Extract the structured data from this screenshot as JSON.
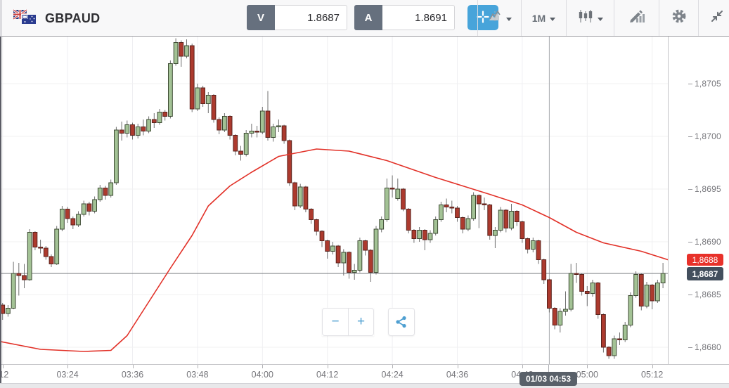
{
  "header": {
    "symbol": "GBPAUD",
    "sell": {
      "label": "V",
      "value": "1.8687"
    },
    "buy": {
      "label": "A",
      "value": "1.8691"
    },
    "timeframe": {
      "value": "1M"
    },
    "accent_color": "#47a4da"
  },
  "toolbar_icons": [
    "compare-charts",
    "timeframe-select",
    "chart-type-candlestick",
    "indicators-draw",
    "settings-gear",
    "collapse"
  ],
  "zoom_controls": {
    "zoom_out": "−",
    "zoom_in": "+"
  },
  "crosshair": {
    "index": 102,
    "tooltip": "01/03 04:53"
  },
  "price_axis": {
    "ma_badge": {
      "label": "1,8688",
      "color": "#e8312a"
    },
    "price_badge": {
      "label": "1,8687",
      "color": "#434f5d"
    }
  },
  "time_axis": {
    "ticks": [
      {
        "index": 1,
        "label": ":12"
      },
      {
        "index": 13,
        "label": "03:24"
      },
      {
        "index": 25,
        "label": "03:36"
      },
      {
        "index": 37,
        "label": "03:48"
      },
      {
        "index": 49,
        "label": "04:00"
      },
      {
        "index": 61,
        "label": "04:12"
      },
      {
        "index": 73,
        "label": "04:24"
      },
      {
        "index": 85,
        "label": "04:36"
      },
      {
        "index": 97,
        "label": "04:48"
      },
      {
        "index": 109,
        "label": "05:00"
      },
      {
        "index": 121,
        "label": "05:12"
      }
    ]
  },
  "chart_data": {
    "type": "candlestick",
    "symbol": "GBPAUD",
    "interval": "1M",
    "start_time": "03:11",
    "end_time": "05:14",
    "encoding": "price = 1.86 + pips/10000",
    "y_axis_range": [
      1.86784,
      1.87095
    ],
    "grid": true,
    "current_price": 1.8687,
    "current_price_pips": 87.0,
    "ma_last_price": 1.8688,
    "up_color": "#a3c295",
    "up_border": "#3c4a32",
    "down_color": "#ac3a2e",
    "down_border": "#5a231d",
    "wick_color": "#707070",
    "ma_color": "#e23128",
    "y_ticks": [
      {
        "pips": 105,
        "label": "1,8705"
      },
      {
        "pips": 100,
        "label": "1,8700"
      },
      {
        "pips": 95,
        "label": "1,8695"
      },
      {
        "pips": 90,
        "label": "1,8690"
      },
      {
        "pips": 85,
        "label": "1,8685"
      },
      {
        "pips": 80,
        "label": "1,8680"
      }
    ],
    "ohlc": [
      [
        84.8,
        85.3,
        83.8,
        84.0
      ],
      [
        84.0,
        84.2,
        82.6,
        83.2
      ],
      [
        83.2,
        84.0,
        82.9,
        83.7
      ],
      [
        83.7,
        88.1,
        83.6,
        87.0
      ],
      [
        87.0,
        88.0,
        84.9,
        86.8
      ],
      [
        86.8,
        87.9,
        85.6,
        86.4
      ],
      [
        86.4,
        91.2,
        86.3,
        90.9
      ],
      [
        90.9,
        91.0,
        89.2,
        89.5
      ],
      [
        89.5,
        90.2,
        88.9,
        89.4
      ],
      [
        89.4,
        89.6,
        88.3,
        88.6
      ],
      [
        88.6,
        88.8,
        87.6,
        87.9
      ],
      [
        87.9,
        91.5,
        87.8,
        91.2
      ],
      [
        91.2,
        93.4,
        91.0,
        93.1
      ],
      [
        93.1,
        93.3,
        91.8,
        92.2
      ],
      [
        92.2,
        92.4,
        91.2,
        91.6
      ],
      [
        91.6,
        92.9,
        91.4,
        92.6
      ],
      [
        92.6,
        93.9,
        92.4,
        93.6
      ],
      [
        93.6,
        93.8,
        92.5,
        92.9
      ],
      [
        92.9,
        94.3,
        92.7,
        94.0
      ],
      [
        94.0,
        95.4,
        93.8,
        95.1
      ],
      [
        95.1,
        95.3,
        94.0,
        94.4
      ],
      [
        94.4,
        95.9,
        94.2,
        95.6
      ],
      [
        95.6,
        100.9,
        95.4,
        100.6
      ],
      [
        100.6,
        101.4,
        99.6,
        100.3
      ],
      [
        100.3,
        101.5,
        99.9,
        101.1
      ],
      [
        101.1,
        101.3,
        99.7,
        100.1
      ],
      [
        100.1,
        101.2,
        99.8,
        100.9
      ],
      [
        100.9,
        101.6,
        100.1,
        100.5
      ],
      [
        100.5,
        101.9,
        100.3,
        101.6
      ],
      [
        101.6,
        102.2,
        100.8,
        101.3
      ],
      [
        101.3,
        102.6,
        101.1,
        102.3
      ],
      [
        102.3,
        102.5,
        101.5,
        101.9
      ],
      [
        101.9,
        107.2,
        101.7,
        106.9
      ],
      [
        106.9,
        109.3,
        106.7,
        108.9
      ],
      [
        108.9,
        109.1,
        106.6,
        107.6
      ],
      [
        107.6,
        109.2,
        107.4,
        108.6
      ],
      [
        108.6,
        108.8,
        102.3,
        102.6
      ],
      [
        102.6,
        105.0,
        102.4,
        104.6
      ],
      [
        104.6,
        104.8,
        102.8,
        103.1
      ],
      [
        103.1,
        104.2,
        102.2,
        103.9
      ],
      [
        103.9,
        104.0,
        101.3,
        101.6
      ],
      [
        101.6,
        101.8,
        100.2,
        100.6
      ],
      [
        100.6,
        102.2,
        100.4,
        101.9
      ],
      [
        101.9,
        102.0,
        99.7,
        100.1
      ],
      [
        100.1,
        100.2,
        98.2,
        98.6
      ],
      [
        98.6,
        99.1,
        97.7,
        98.3
      ],
      [
        98.3,
        100.6,
        98.1,
        100.3
      ],
      [
        100.3,
        101.2,
        99.9,
        100.5
      ],
      [
        100.5,
        101.0,
        99.9,
        100.4
      ],
      [
        100.4,
        102.8,
        100.2,
        102.4
      ],
      [
        102.4,
        104.3,
        99.6,
        99.9
      ],
      [
        99.9,
        101.2,
        99.5,
        100.9
      ],
      [
        100.9,
        101.6,
        100.4,
        101.0
      ],
      [
        101.0,
        101.1,
        99.3,
        99.6
      ],
      [
        99.6,
        99.7,
        95.3,
        95.6
      ],
      [
        95.6,
        95.7,
        93.0,
        93.4
      ],
      [
        93.4,
        95.5,
        93.2,
        95.2
      ],
      [
        95.2,
        95.3,
        92.8,
        93.1
      ],
      [
        93.1,
        93.2,
        91.7,
        92.1
      ],
      [
        92.1,
        92.2,
        90.6,
        91.0
      ],
      [
        91.0,
        91.1,
        89.5,
        90.1
      ],
      [
        90.1,
        90.2,
        88.4,
        89.1
      ],
      [
        89.1,
        90.0,
        88.8,
        89.6
      ],
      [
        89.6,
        89.7,
        87.6,
        88.0
      ],
      [
        88.0,
        89.3,
        86.8,
        89.0
      ],
      [
        89.0,
        89.1,
        86.5,
        87.1
      ],
      [
        87.1,
        87.9,
        86.4,
        87.3
      ],
      [
        87.3,
        90.4,
        87.1,
        90.1
      ],
      [
        90.1,
        90.2,
        88.7,
        89.2
      ],
      [
        89.2,
        89.3,
        86.2,
        87.1
      ],
      [
        87.1,
        91.5,
        86.9,
        91.2
      ],
      [
        91.2,
        92.4,
        90.9,
        92.1
      ],
      [
        92.1,
        96.0,
        91.9,
        95.1
      ],
      [
        95.1,
        96.3,
        94.2,
        95.0
      ],
      [
        94.1,
        96.0,
        93.9,
        95.0
      ],
      [
        95.0,
        95.1,
        92.9,
        93.1
      ],
      [
        93.1,
        93.2,
        90.8,
        91.1
      ],
      [
        91.1,
        91.2,
        89.9,
        90.3
      ],
      [
        90.3,
        91.4,
        90.0,
        91.1
      ],
      [
        91.1,
        91.2,
        89.2,
        90.2
      ],
      [
        90.2,
        91.1,
        89.9,
        90.8
      ],
      [
        90.8,
        92.4,
        90.6,
        92.1
      ],
      [
        92.1,
        93.8,
        91.9,
        93.5
      ],
      [
        93.5,
        94.1,
        92.8,
        93.3
      ],
      [
        93.3,
        93.9,
        92.7,
        93.2
      ],
      [
        93.2,
        93.4,
        91.9,
        92.3
      ],
      [
        92.3,
        92.4,
        90.8,
        91.2
      ],
      [
        91.2,
        92.5,
        91.0,
        92.2
      ],
      [
        92.2,
        94.7,
        92.0,
        94.4
      ],
      [
        94.4,
        94.5,
        91.3,
        93.6
      ],
      [
        93.6,
        94.2,
        93.0,
        93.5
      ],
      [
        93.5,
        93.6,
        90.2,
        90.6
      ],
      [
        90.6,
        91.4,
        89.4,
        91.1
      ],
      [
        91.1,
        93.3,
        90.9,
        93.0
      ],
      [
        93.0,
        93.1,
        90.9,
        91.3
      ],
      [
        91.3,
        93.6,
        91.1,
        92.9
      ],
      [
        92.9,
        93.0,
        91.5,
        91.9
      ],
      [
        91.9,
        92.0,
        89.9,
        90.3
      ],
      [
        90.3,
        90.4,
        88.9,
        89.3
      ],
      [
        89.3,
        90.4,
        89.0,
        90.1
      ],
      [
        90.1,
        90.2,
        87.9,
        88.3
      ],
      [
        88.3,
        88.4,
        86.0,
        86.4
      ],
      [
        86.4,
        86.5,
        83.3,
        83.7
      ],
      [
        83.7,
        83.8,
        81.7,
        82.1
      ],
      [
        82.1,
        83.7,
        81.4,
        83.4
      ],
      [
        83.4,
        85.3,
        83.0,
        83.6
      ],
      [
        83.6,
        87.9,
        83.4,
        87.0
      ],
      [
        87.0,
        88.0,
        86.1,
        86.9
      ],
      [
        86.9,
        87.0,
        84.9,
        85.3
      ],
      [
        85.3,
        85.8,
        83.9,
        85.1
      ],
      [
        85.1,
        86.4,
        84.8,
        86.1
      ],
      [
        86.1,
        86.2,
        82.7,
        83.1
      ],
      [
        83.1,
        83.2,
        79.5,
        80.0
      ],
      [
        80.0,
        80.1,
        78.9,
        79.2
      ],
      [
        79.2,
        81.1,
        78.9,
        80.8
      ],
      [
        80.8,
        81.4,
        80.2,
        80.7
      ],
      [
        80.7,
        82.4,
        80.5,
        82.1
      ],
      [
        82.1,
        85.2,
        81.9,
        84.9
      ],
      [
        84.9,
        87.2,
        84.7,
        86.9
      ],
      [
        86.9,
        87.0,
        83.5,
        83.9
      ],
      [
        83.9,
        86.2,
        83.7,
        85.9
      ],
      [
        85.9,
        86.0,
        83.6,
        84.4
      ],
      [
        84.4,
        86.4,
        84.2,
        86.1
      ],
      [
        86.1,
        88.0,
        85.6,
        87.0
      ]
    ],
    "ma_line": [
      [
        0,
        80.6
      ],
      [
        8,
        79.8
      ],
      [
        16,
        79.6
      ],
      [
        21,
        79.7
      ],
      [
        24,
        81.1
      ],
      [
        28,
        84.3
      ],
      [
        32,
        87.5
      ],
      [
        36,
        90.6
      ],
      [
        39,
        93.4
      ],
      [
        43,
        95.3
      ],
      [
        47,
        96.6
      ],
      [
        52,
        98.1
      ],
      [
        59,
        98.8
      ],
      [
        65,
        98.6
      ],
      [
        72,
        97.7
      ],
      [
        81,
        96.1
      ],
      [
        86,
        95.3
      ],
      [
        91,
        94.5
      ],
      [
        97,
        93.5
      ],
      [
        102,
        92.3
      ],
      [
        107,
        90.9
      ],
      [
        112,
        89.9
      ],
      [
        119,
        89.1
      ],
      [
        123.9,
        88.3
      ]
    ]
  }
}
